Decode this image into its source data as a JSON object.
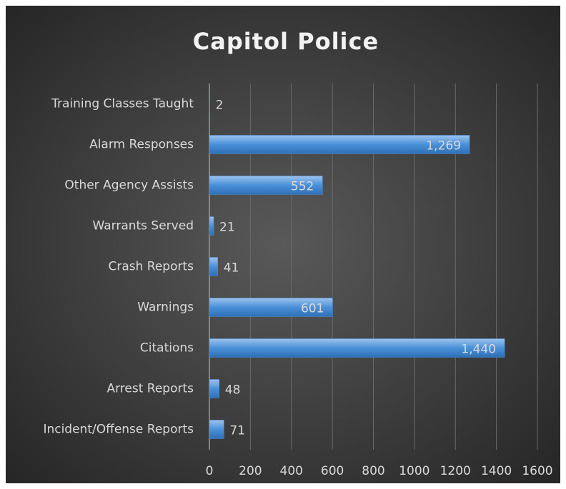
{
  "chart_data": {
    "type": "barh",
    "title": "Capitol Police",
    "categories": [
      "Training Classes Taught",
      "Alarm Responses",
      "Other Agency Assists",
      "Warrants Served",
      "Crash Reports",
      "Warnings",
      "Citations",
      "Arrest Reports",
      "Incident/Offense Reports"
    ],
    "values": [
      2,
      1269,
      552,
      21,
      41,
      601,
      1440,
      48,
      71
    ],
    "value_labels": [
      "2",
      "1,269",
      "552",
      "21",
      "41",
      "601",
      "1,440",
      "48",
      "71"
    ],
    "color": "#4a90d9",
    "xlim": [
      0,
      1600
    ],
    "xticks": [
      0,
      200,
      400,
      600,
      800,
      1000,
      1200,
      1400,
      1600
    ],
    "grid": true
  }
}
